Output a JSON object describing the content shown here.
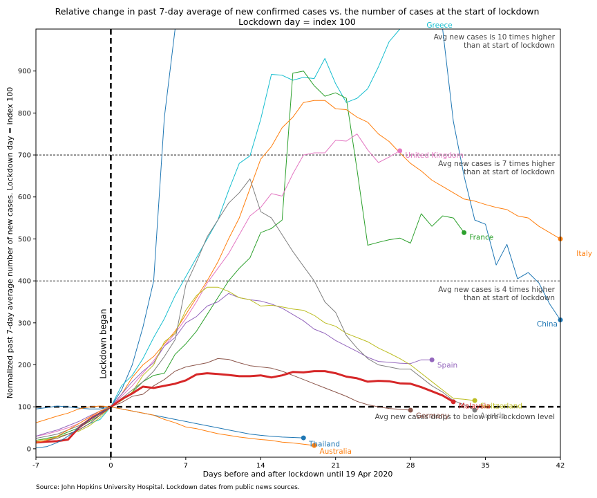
{
  "chart_data": {
    "type": "line",
    "title": "Relative change in past 7-day average of new confirmed cases vs. the number of cases at the start of lockdown",
    "subtitle": "Lockdown day = index 100",
    "xlabel": "Days before and after lockdown until 19 Apr 2020",
    "ylabel": "Normalized past 7-day average number of new cases. Lockdown day = index 100",
    "source": "Source: John Hopkins University Hospital. Lockdown dates from public news sources.",
    "xlim": [
      -7,
      42
    ],
    "ylim": [
      -20,
      1000
    ],
    "xticks": [
      -7,
      0,
      7,
      14,
      21,
      28,
      35,
      42
    ],
    "yticks": [
      0,
      100,
      200,
      300,
      400,
      500,
      600,
      700,
      800,
      900
    ],
    "grid": false,
    "legend": "none",
    "vline": {
      "x": 0,
      "label": "Lockdown began"
    },
    "reference_lines": [
      {
        "y": 100,
        "style": "thick-dashed",
        "label": "Avg new cases drops to below pre-lockdown level"
      },
      {
        "y": 400,
        "style": "dashed",
        "label_line1": "Avg new cases is 4 times higher",
        "label_line2": "than at start of lockdown"
      },
      {
        "y": 700,
        "style": "dashed",
        "label_line1": "Avg new cases is 7 times higher",
        "label_line2": "than at start of lockdown"
      },
      {
        "y": 1000,
        "style": "none",
        "label_line1": "Avg new cases is 10 times higher",
        "label_line2": "than at start of lockdown"
      }
    ],
    "series": [
      {
        "name": "China",
        "color": "#1f77b4",
        "width": 1,
        "x": [
          -7,
          -6,
          -5,
          -4,
          -3,
          -2,
          -1,
          0,
          1,
          2,
          3,
          4,
          5,
          6,
          7,
          8,
          9,
          10,
          11,
          12,
          13,
          14,
          15,
          16,
          17,
          18,
          19,
          20,
          21,
          22,
          23,
          24,
          25,
          26,
          27,
          28,
          29,
          30,
          31,
          32,
          33,
          34,
          35,
          36,
          37,
          38,
          39,
          40,
          41,
          42
        ],
        "y": [
          95,
          98,
          102,
          100,
          97,
          95,
          95,
          100,
          140,
          200,
          290,
          400,
          790,
          1000,
          1000,
          1000,
          1000,
          1000,
          1000,
          1000,
          1000,
          1000,
          1000,
          1000,
          1000,
          1000,
          1000,
          1000,
          1000,
          1000,
          1000,
          1000,
          1000,
          1000,
          1000,
          1000,
          1000,
          1000,
          1000,
          780,
          650,
          545,
          535,
          438,
          487,
          405,
          420,
          395,
          345,
          307
        ],
        "label_x": 39.8,
        "label_y": 298
      },
      {
        "name": "Greece",
        "color": "#17becf",
        "width": 1,
        "x": [
          -7,
          -6,
          -5,
          -4,
          -3,
          -2,
          -1,
          0,
          1,
          2,
          3,
          4,
          5,
          6,
          7,
          8,
          9,
          10,
          11,
          12,
          13,
          14,
          15,
          16,
          17,
          18,
          19,
          20,
          21,
          22,
          23,
          24,
          25,
          26,
          27
        ],
        "y": [
          15,
          20,
          28,
          35,
          45,
          60,
          70,
          100,
          150,
          175,
          215,
          265,
          310,
          365,
          410,
          455,
          500,
          545,
          615,
          680,
          698,
          785,
          892,
          890,
          878,
          885,
          882,
          930,
          870,
          825,
          835,
          858,
          910,
          970,
          1000
        ],
        "label_x": 29.5,
        "label_y": 1010
      },
      {
        "name": "France",
        "color": "#2ca02c",
        "width": 1,
        "x": [
          -7,
          -6,
          -5,
          -4,
          -3,
          -2,
          -1,
          0,
          1,
          2,
          3,
          4,
          5,
          6,
          7,
          8,
          9,
          10,
          11,
          12,
          13,
          14,
          15,
          16,
          17,
          18,
          19,
          20,
          21,
          22,
          23,
          24,
          25,
          26,
          27,
          28,
          29,
          30,
          31,
          32,
          33
        ],
        "y": [
          20,
          25,
          30,
          40,
          50,
          65,
          80,
          100,
          115,
          135,
          160,
          175,
          180,
          225,
          250,
          280,
          320,
          360,
          400,
          430,
          455,
          515,
          525,
          545,
          895,
          900,
          865,
          840,
          848,
          835,
          665,
          485,
          492,
          498,
          502,
          490,
          560,
          530,
          555,
          550,
          515
        ],
        "label_x": 33.5,
        "label_y": 505
      },
      {
        "name": "Italy",
        "color": "#ff7f0e",
        "width": 1,
        "x": [
          -7,
          -6,
          -5,
          -4,
          -3,
          -2,
          -1,
          0,
          1,
          2,
          3,
          4,
          5,
          6,
          7,
          8,
          9,
          10,
          11,
          12,
          13,
          14,
          15,
          16,
          17,
          18,
          19,
          20,
          21,
          22,
          23,
          24,
          25,
          26,
          27,
          28,
          29,
          30,
          31,
          32,
          33,
          34,
          35,
          36,
          37,
          38,
          39,
          40,
          41,
          42
        ],
        "y": [
          62,
          70,
          78,
          85,
          95,
          100,
          102,
          100,
          130,
          170,
          200,
          220,
          250,
          280,
          320,
          360,
          400,
          445,
          500,
          550,
          620,
          690,
          720,
          765,
          790,
          825,
          830,
          830,
          810,
          808,
          790,
          778,
          750,
          732,
          705,
          680,
          662,
          640,
          625,
          610,
          595,
          590,
          582,
          575,
          570,
          555,
          550,
          530,
          515,
          500
        ],
        "label_x": 43.5,
        "label_y": 466
      },
      {
        "name": "United Kingdom",
        "color": "#e377c2",
        "width": 1,
        "x": [
          -7,
          -6,
          -5,
          -4,
          -3,
          -2,
          -1,
          0,
          1,
          2,
          3,
          4,
          5,
          6,
          7,
          8,
          9,
          10,
          11,
          12,
          13,
          14,
          15,
          16,
          17,
          18,
          19,
          20,
          21,
          22,
          23,
          24,
          25,
          26,
          27
        ],
        "y": [
          30,
          35,
          42,
          50,
          60,
          75,
          85,
          100,
          125,
          150,
          180,
          210,
          245,
          275,
          310,
          350,
          395,
          430,
          465,
          510,
          555,
          575,
          608,
          602,
          655,
          700,
          705,
          705,
          735,
          733,
          750,
          712,
          682,
          695,
          710
        ],
        "label_x": 27.5,
        "label_y": 700
      },
      {
        "name": "Spain",
        "color": "#9467bd",
        "width": 1,
        "x": [
          -7,
          -6,
          -5,
          -4,
          -3,
          -2,
          -1,
          0,
          1,
          2,
          3,
          4,
          5,
          6,
          7,
          8,
          9,
          10,
          11,
          12,
          13,
          14,
          15,
          16,
          17,
          18,
          19,
          20,
          21,
          22,
          23,
          24,
          25,
          26,
          27,
          28,
          29,
          30
        ],
        "y": [
          30,
          38,
          45,
          55,
          65,
          78,
          90,
          100,
          130,
          160,
          185,
          205,
          245,
          265,
          300,
          315,
          340,
          350,
          370,
          360,
          355,
          352,
          345,
          335,
          320,
          305,
          285,
          275,
          258,
          245,
          232,
          218,
          208,
          206,
          204,
          203,
          212,
          212
        ],
        "label_x": 30.5,
        "label_y": 200
      },
      {
        "name": "Switzerland",
        "color": "#bcbd22",
        "width": 1,
        "x": [
          -7,
          -6,
          -5,
          -4,
          -3,
          -2,
          -1,
          0,
          1,
          2,
          3,
          4,
          5,
          6,
          7,
          8,
          9,
          10,
          11,
          12,
          13,
          14,
          15,
          16,
          17,
          18,
          19,
          20,
          21,
          22,
          23,
          24,
          25,
          26,
          27,
          28,
          29,
          30,
          31,
          32,
          33,
          34
        ],
        "y": [
          20,
          22,
          28,
          35,
          42,
          55,
          75,
          100,
          115,
          135,
          175,
          200,
          255,
          275,
          330,
          365,
          385,
          385,
          375,
          360,
          355,
          340,
          342,
          338,
          333,
          330,
          318,
          300,
          292,
          275,
          265,
          255,
          240,
          228,
          215,
          200,
          180,
          160,
          140,
          120,
          118,
          115
        ],
        "label_x": 34.5,
        "label_y": 103
      },
      {
        "name": "Austria",
        "color": "#7f7f7f",
        "width": 1,
        "x": [
          -7,
          -6,
          -5,
          -4,
          -3,
          -2,
          -1,
          0,
          1,
          2,
          3,
          4,
          5,
          6,
          7,
          8,
          9,
          10,
          11,
          12,
          13,
          14,
          15,
          16,
          17,
          18,
          19,
          20,
          21,
          22,
          23,
          24,
          25,
          26,
          27,
          28,
          29,
          30,
          31,
          32,
          33,
          34
        ],
        "y": [
          25,
          30,
          35,
          45,
          55,
          70,
          85,
          100,
          120,
          140,
          160,
          185,
          220,
          260,
          390,
          445,
          505,
          545,
          585,
          610,
          643,
          565,
          550,
          510,
          470,
          435,
          400,
          350,
          325,
          270,
          240,
          215,
          200,
          195,
          190,
          190,
          170,
          150,
          135,
          115,
          105,
          92
        ],
        "label_x": 34.5,
        "label_y": 80
      },
      {
        "name": "Germany",
        "color": "#8c564b",
        "width": 1,
        "x": [
          -7,
          -6,
          -5,
          -4,
          -3,
          -2,
          -1,
          0,
          1,
          2,
          3,
          4,
          5,
          6,
          7,
          8,
          9,
          10,
          11,
          12,
          13,
          14,
          15,
          16,
          17,
          18,
          19,
          20,
          21,
          22,
          23,
          24,
          25,
          26,
          27,
          28
        ],
        "y": [
          15,
          20,
          25,
          35,
          45,
          60,
          80,
          100,
          110,
          125,
          130,
          150,
          165,
          185,
          195,
          200,
          205,
          215,
          213,
          205,
          198,
          195,
          192,
          185,
          175,
          165,
          155,
          145,
          135,
          125,
          113,
          105,
          100,
          96,
          94,
          92
        ],
        "label_x": 28.5,
        "label_y": 80
      },
      {
        "name": "Malaysia",
        "color": "#d62728",
        "width": 3,
        "x": [
          -7,
          -6,
          -5,
          -4,
          -3,
          -2,
          -1,
          0,
          1,
          2,
          3,
          4,
          5,
          6,
          7,
          8,
          9,
          10,
          11,
          12,
          13,
          14,
          15,
          16,
          17,
          18,
          19,
          20,
          21,
          22,
          23,
          24,
          25,
          26,
          27,
          28,
          29,
          30,
          31,
          32
        ],
        "y": [
          15,
          17,
          18,
          22,
          50,
          70,
          85,
          100,
          118,
          132,
          148,
          145,
          150,
          155,
          163,
          177,
          180,
          178,
          176,
          173,
          173,
          175,
          170,
          175,
          183,
          182,
          185,
          185,
          180,
          172,
          168,
          160,
          162,
          161,
          156,
          155,
          147,
          137,
          127,
          112
        ],
        "label_x": 32.5,
        "label_y": 103
      },
      {
        "name": "Thailand",
        "color": "#1f77b4",
        "width": 1,
        "x": [
          -7,
          -6,
          -5,
          -4,
          -3,
          -2,
          -1,
          0,
          1,
          2,
          3,
          4,
          5,
          6,
          7,
          8,
          9,
          10,
          11,
          12,
          13,
          14,
          15,
          16,
          17,
          18
        ],
        "y": [
          2,
          5,
          15,
          30,
          50,
          70,
          85,
          100,
          95,
          90,
          85,
          80,
          75,
          70,
          65,
          60,
          55,
          50,
          45,
          40,
          35,
          32,
          30,
          28,
          27,
          26
        ],
        "label_x": 18.5,
        "label_y": 12
      },
      {
        "name": "Australia",
        "color": "#ff7f0e",
        "width": 1,
        "x": [
          -7,
          -6,
          -5,
          -4,
          -3,
          -2,
          -1,
          0,
          1,
          2,
          3,
          4,
          5,
          6,
          7,
          8,
          9,
          10,
          11,
          12,
          13,
          14,
          15,
          16,
          17,
          18,
          19
        ],
        "y": [
          15,
          20,
          30,
          45,
          60,
          75,
          90,
          100,
          95,
          90,
          85,
          80,
          70,
          62,
          52,
          48,
          42,
          36,
          32,
          28,
          25,
          22,
          20,
          16,
          14,
          11,
          8
        ],
        "label_x": 19.5,
        "label_y": -5
      }
    ]
  }
}
